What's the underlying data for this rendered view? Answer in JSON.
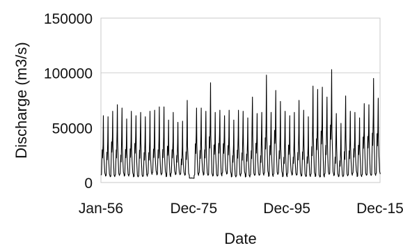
{
  "chart_data": {
    "type": "line",
    "title": "",
    "xlabel": "Date",
    "ylabel": "Discharge (m3/s)",
    "ylim": [
      0,
      150000
    ],
    "yticks": [
      0,
      50000,
      100000,
      150000
    ],
    "ytick_labels": [
      "0",
      "50000",
      "100000",
      "150000"
    ],
    "xlim": [
      "1956-01",
      "2015-12"
    ],
    "xticks": [
      "1956-01",
      "1975-12",
      "1995-12",
      "2015-12"
    ],
    "xtick_labels": [
      "Jan-56",
      "Dec-75",
      "Dec-95",
      "Dec-15"
    ],
    "grid": "horizontal gridlines",
    "legend": "none",
    "line_color": "#000000",
    "series": [
      {
        "sampling": "annual hydrograph peaks (approximate)",
        "x": [
          "1956",
          "1957",
          "1958",
          "1959",
          "1960",
          "1961",
          "1962",
          "1963",
          "1964",
          "1965",
          "1966",
          "1967",
          "1968",
          "1969",
          "1970",
          "1971",
          "1972",
          "1973",
          "1974",
          "1975",
          "1976",
          "1977",
          "1978",
          "1979",
          "1980",
          "1981",
          "1982",
          "1983",
          "1984",
          "1985",
          "1986",
          "1987",
          "1988",
          "1989",
          "1990",
          "1991",
          "1992",
          "1993",
          "1994",
          "1995",
          "1996",
          "1997",
          "1998",
          "1999",
          "2000",
          "2001",
          "2002",
          "2003",
          "2004",
          "2005",
          "2006",
          "2007",
          "2008",
          "2009",
          "2010",
          "2011",
          "2012",
          "2013",
          "2014",
          "2015"
        ],
        "peak": [
          61000,
          60000,
          65000,
          71000,
          68000,
          58000,
          65000,
          61000,
          64000,
          60000,
          65000,
          66000,
          69000,
          69000,
          57000,
          64000,
          55000,
          56000,
          75000,
          4000,
          68000,
          68000,
          65000,
          91000,
          64000,
          66000,
          61000,
          66000,
          57000,
          66000,
          65000,
          59000,
          78000,
          63000,
          64000,
          98000,
          64000,
          84000,
          74000,
          65000,
          61000,
          64000,
          75000,
          66000,
          60000,
          88000,
          85000,
          87000,
          78000,
          103000,
          63000,
          54000,
          79000,
          65000,
          64000,
          59000,
          72000,
          71000,
          95000,
          77000
        ]
      }
    ]
  }
}
